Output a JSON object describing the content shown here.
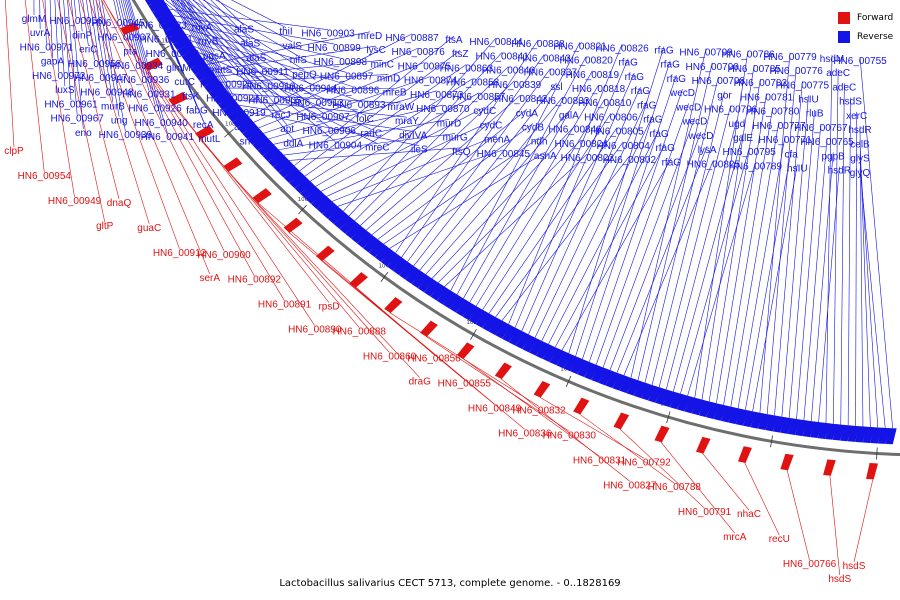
{
  "caption": "Lactobacillus salivarius CECT 5713, complete genome. - 0..1828169",
  "legend": {
    "forward": {
      "label": "Forward",
      "color": "#e11212"
    },
    "reverse": {
      "label": "Reverse",
      "color": "#1414e6"
    }
  },
  "colors": {
    "forward": "#e11212",
    "reverse": "#1414e6",
    "axis": "#6e6e6e",
    "tick": "#333333"
  },
  "ticks": [
    "1200 kbp",
    "1180 kbp",
    "1160 kbp",
    "1140 kbp",
    "1120 kbp",
    "1100 kbp",
    "1080 kbp",
    "1060 kbp",
    "1040 kbp",
    "1020 kbp",
    "1000 kbp",
    "980 kbp",
    "960 kbp",
    "940 kbp"
  ],
  "reverse_labels": [
    "glmM",
    "uvrA",
    "HN6_00971",
    "gapA",
    "HN6_00972",
    "luxS",
    "HN6_00961",
    "HN6_00967",
    "eno",
    "HN6_00956",
    "dinP",
    "eriC",
    "HN6_00958",
    "HN6_00947",
    "HN6_00948",
    "murB",
    "ung",
    "HN6_00939",
    "HN6_00945",
    "HN6_00937",
    "pta",
    "HN6_00934",
    "HN6_00936",
    "HN6_00931",
    "HN6_00926",
    "HN6_00940",
    "HN6_00941",
    "HN6_00923",
    "HN6_00921",
    "HN6_00922",
    "glmM",
    "cutC",
    "ftsK",
    "fabG",
    "recA",
    "mutL",
    "ruvA",
    "ruvB",
    "pgsA",
    "mutS",
    "HN6_00925",
    "HN6_00924",
    "HN6_00919",
    "ackA",
    "srmB",
    "alaS",
    "alaS",
    "alaS",
    "HN6_00911",
    "HN6_00910",
    "HN6_00905",
    "recJ",
    "apt",
    "ddlA",
    "thiI",
    "valS",
    "nifS",
    "pepQ",
    "HN6_00914",
    "HN6_00913",
    "HN6_00907",
    "HN6_00906",
    "HN6_00904",
    "HN6_00903",
    "HN6_00899",
    "HN6_00898",
    "HN6_00897",
    "HN6_00896",
    "HN6_00893",
    "folC",
    "radC",
    "mreC",
    "mreD",
    "lysC",
    "minC",
    "minD",
    "mreB",
    "mraW",
    "mraY",
    "divIVA",
    "ileS",
    "HN6_00887",
    "HN6_00876",
    "HN6_00875",
    "HN6_00874",
    "HN6_00873",
    "HN6_00870",
    "murD",
    "murG",
    "ftsQ",
    "ftsA",
    "ftsZ",
    "HN6_00863",
    "HN6_00858",
    "HN6_00857",
    "cydC",
    "cydC",
    "menA",
    "HN6_00845",
    "HN6_00844",
    "HN6_00841",
    "HN6_00840",
    "HN6_00839",
    "HN6_00842",
    "cydA",
    "cydB",
    "ndh",
    "asnA",
    "HN6_00838",
    "HN6_00843",
    "HN6_00837",
    "ssl",
    "HN6_00833",
    "galA",
    "HN6_00846",
    "HN6_00824",
    "HN6_00822",
    "HN6_00821",
    "HN6_00820",
    "HN6_00819",
    "HN6_00818",
    "HN6_00810",
    "HN6_00806",
    "HN6_00805",
    "HN6_00804",
    "HN6_00802",
    "HN6_00826",
    "rfaG",
    "rfaG",
    "rfaG",
    "rfaG",
    "rfaG",
    "rfaG",
    "rfaG",
    "rfaG",
    "rfaG",
    "rfaG",
    "rfaG",
    "wecD",
    "wecD",
    "wecD",
    "wecD",
    "lysA",
    "HN6_00825",
    "HN6_00799",
    "HN6_00790",
    "HN6_00798",
    "gor",
    "HN6_00796",
    "ugd",
    "galE",
    "HN6_00795",
    "HN6_00789",
    "HN6_00786",
    "HN6_00785",
    "HN6_00782",
    "HN6_00781",
    "HN6_00780",
    "HN6_00777",
    "HN6_00771",
    "cfa",
    "hsIU",
    "HN6_00779",
    "HN6_00776",
    "HN6_00775",
    "hsIU",
    "rluB",
    "HN6_00767",
    "HN6_00765",
    "pgpB",
    "hsdR",
    "hsdM",
    "adeC",
    "adeC",
    "hsdS",
    "xerC",
    "hsdR",
    "celB",
    "glyS",
    "glyQ",
    "HN6_00755"
  ],
  "forward_labels": [
    "clpP",
    "HN6_00954",
    "HN6_00949",
    "gltP",
    "dnaQ",
    "guaC",
    "HN6_00912",
    "serA",
    "HN6_00900",
    "HN6_00892",
    "HN6_00891",
    "HN6_00890",
    "rpsD",
    "HN6_00888",
    "HN6_00860",
    "draG",
    "HN6_00856",
    "HN6_00855",
    "HN6_00849",
    "HN6_00836",
    "HN6_00832",
    "HN6_00830",
    "HN6_00831",
    "HN6_00827",
    "HN6_00792",
    "HN6_00788",
    "HN6_00791",
    "mrcA",
    "nhaC",
    "recU",
    "HN6_00766",
    "hsdS",
    "hsdS"
  ]
}
